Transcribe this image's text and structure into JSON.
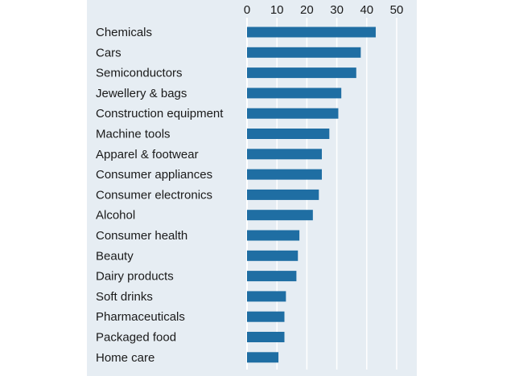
{
  "chart_data": {
    "type": "bar",
    "orientation": "horizontal",
    "title": "",
    "xlabel": "",
    "ylabel": "",
    "xlim": [
      0,
      50
    ],
    "ticks": [
      0,
      10,
      20,
      30,
      40,
      50
    ],
    "tick_labels": [
      "0",
      "10",
      "20",
      "30",
      "40",
      "50"
    ],
    "tick_position": "top",
    "grid": true,
    "categories": [
      "Chemicals",
      "Cars",
      "Semiconductors",
      "Jewellery & bags",
      "Construction equipment",
      "Machine tools",
      "Apparel & footwear",
      "Consumer appliances",
      "Consumer electronics",
      "Alcohol",
      "Consumer health",
      "Beauty",
      "Dairy products",
      "Soft drinks",
      "Pharmaceuticals",
      "Packaged food",
      "Home care"
    ],
    "values": [
      43,
      38,
      36.5,
      31.5,
      30.5,
      27.5,
      25,
      25,
      24,
      22,
      17.5,
      17,
      16.5,
      13,
      12.5,
      12.5,
      10.5
    ],
    "bar_color": "#1f6ea3",
    "grid_color": "#ffffff",
    "background_color": "#e6edf3"
  }
}
